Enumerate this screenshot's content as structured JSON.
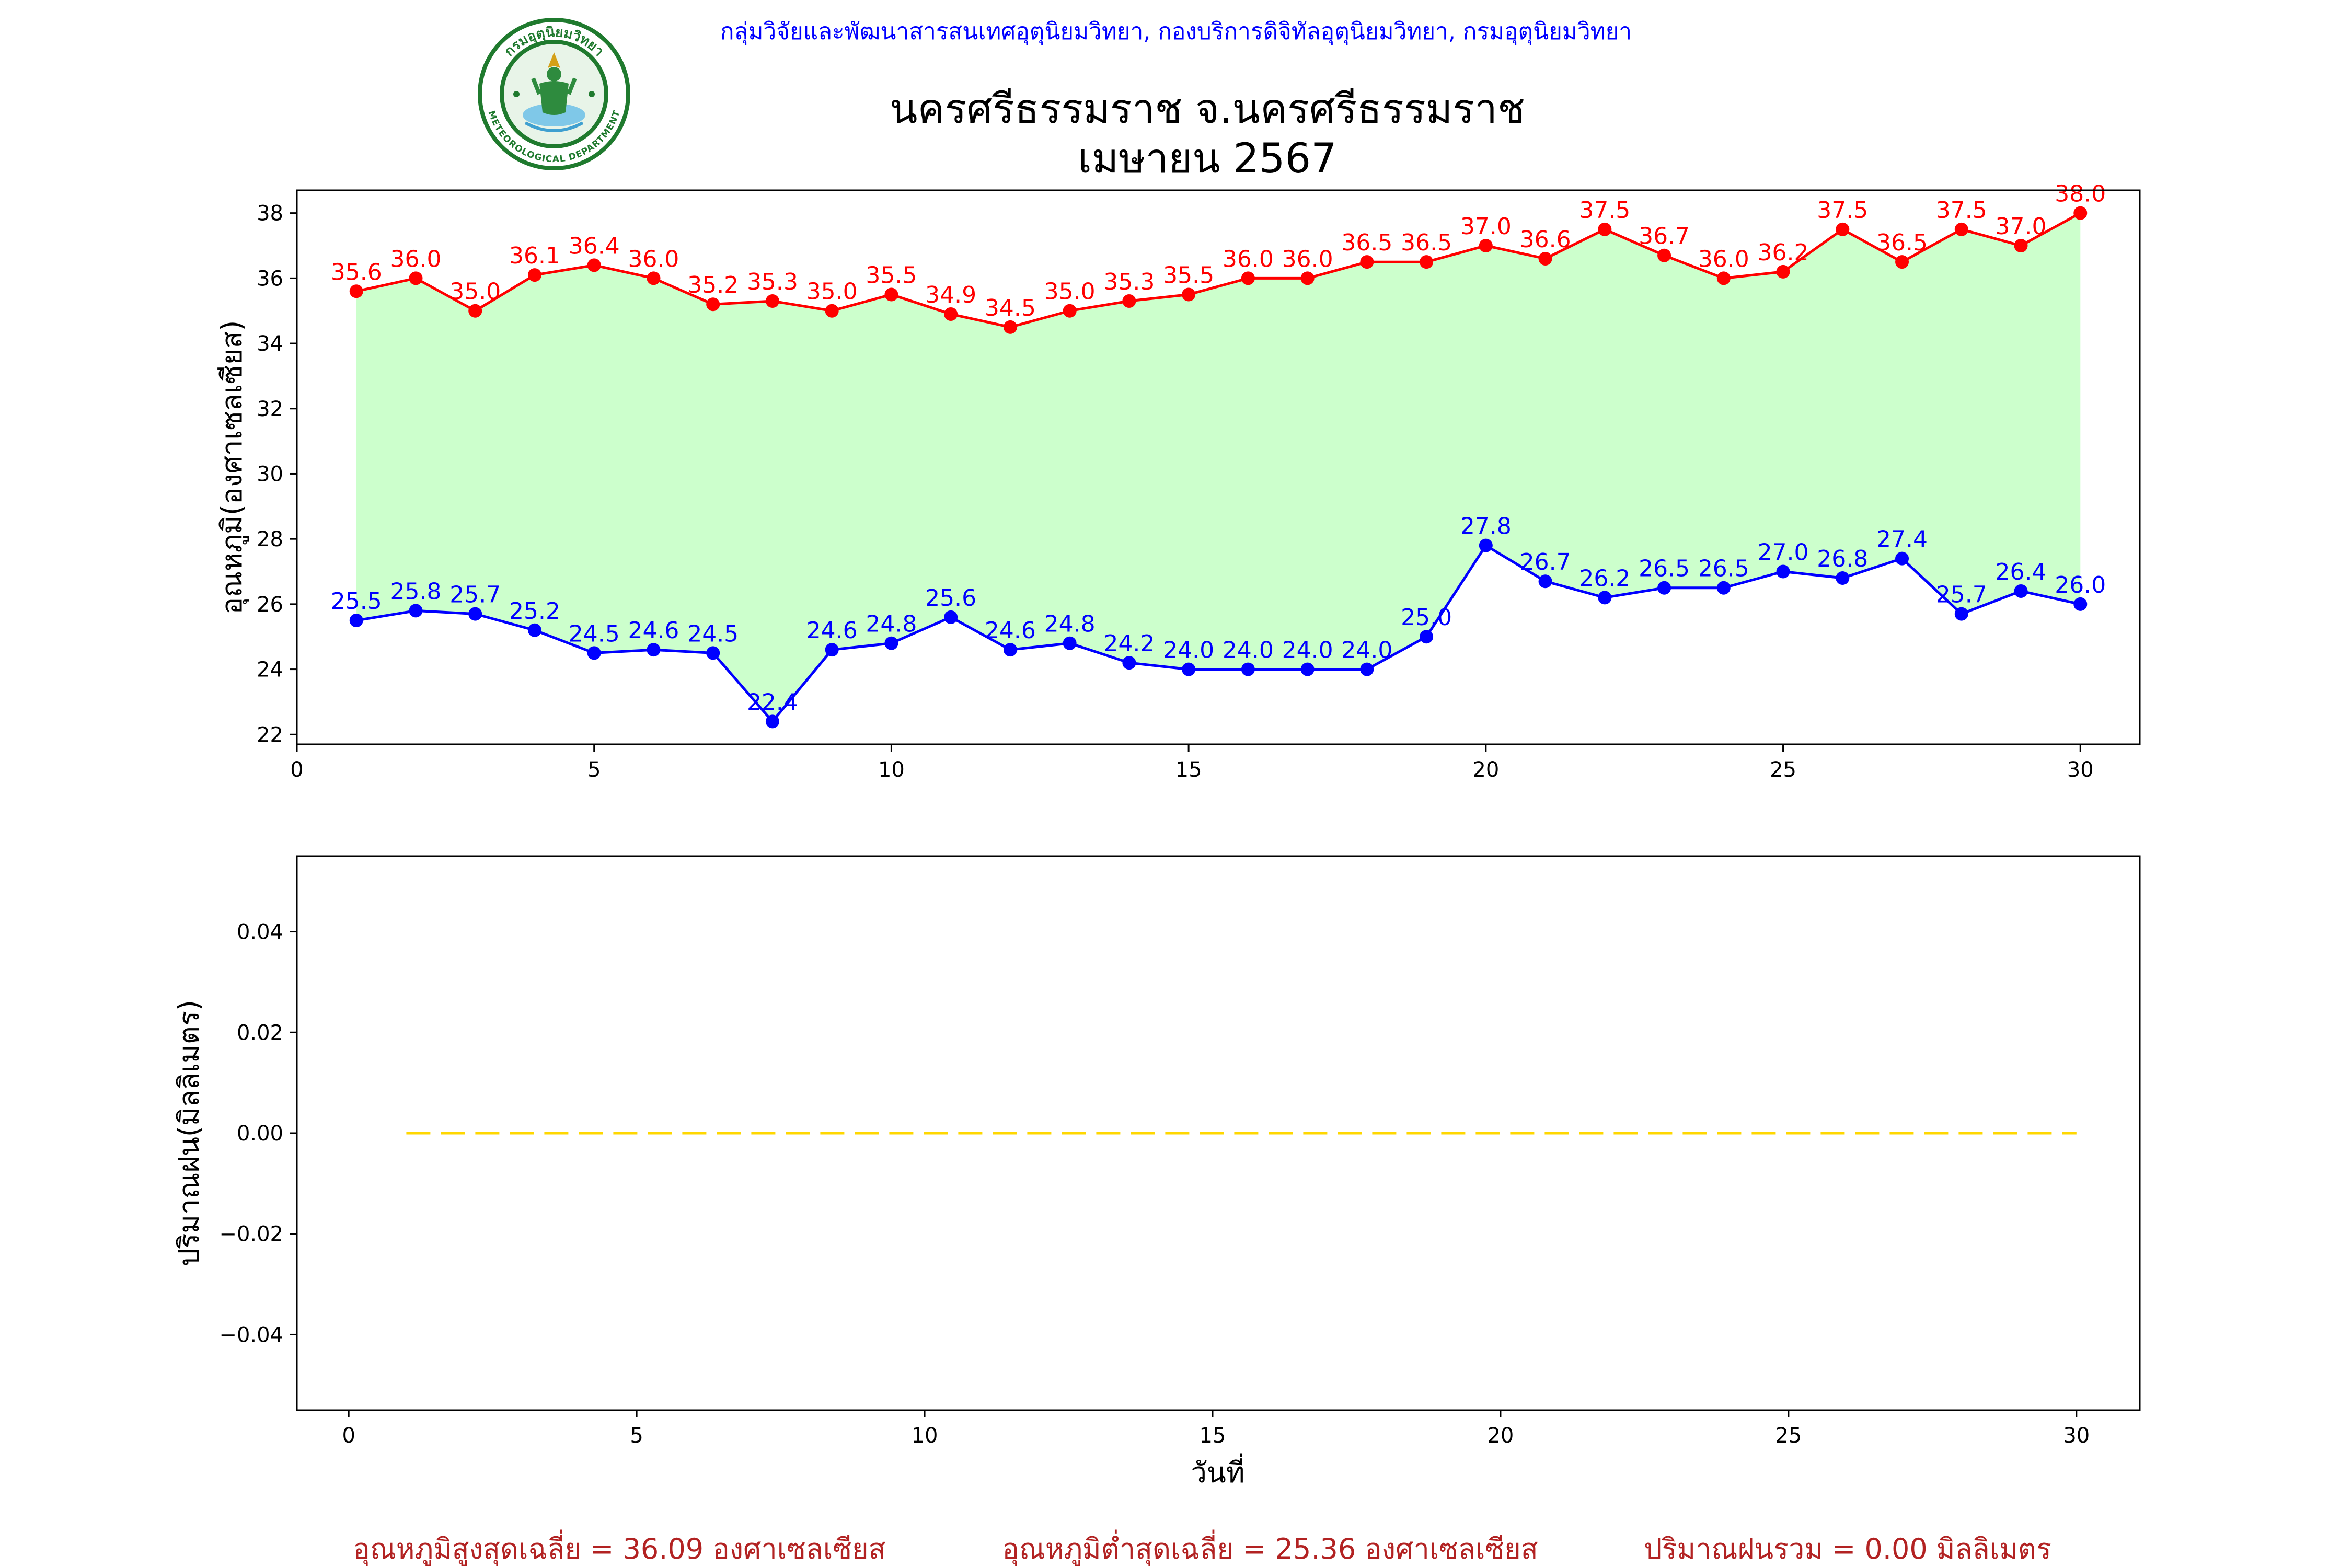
{
  "header": {
    "agency": "กลุ่มวิจัยและพัฒนาสารสนเทศอุตุนิยมวิทยา, กองบริการดิจิทัลอุตุนิยมวิทยา, กรมอุตุนิยมวิทยา",
    "station": "นครศรีธรรมราช จ.นครศรีธรรมราช",
    "period": "เมษายน 2567",
    "logo_top_text": "กรมอุตุนิยมวิทยา",
    "logo_bottom_text": "METEOROLOGICAL DEPARTMENT"
  },
  "colors": {
    "max": "#ff0000",
    "min": "#0000ff",
    "fill": "#ccffcc",
    "rain": "#ffd700",
    "footer": "#b22222",
    "agency": "#0000ff",
    "logo": "#1f7a2e"
  },
  "chart_data": [
    {
      "type": "line",
      "ylabel": "อุณหภูมิ(องศาเซลเซียส)",
      "xlim": [
        0,
        31
      ],
      "ylim": [
        21.7,
        38.7
      ],
      "xticks": [
        0,
        5,
        10,
        15,
        20,
        25,
        30
      ],
      "yticks": [
        22,
        24,
        26,
        28,
        30,
        32,
        34,
        36,
        38
      ],
      "x": [
        1,
        2,
        3,
        4,
        5,
        6,
        7,
        8,
        9,
        10,
        11,
        12,
        13,
        14,
        15,
        16,
        17,
        18,
        19,
        20,
        21,
        22,
        23,
        24,
        25,
        26,
        27,
        28,
        29,
        30
      ],
      "series": [
        {
          "key": "max",
          "values": [
            35.6,
            36.0,
            35.0,
            36.1,
            36.4,
            36.0,
            35.2,
            35.3,
            35.0,
            35.5,
            34.9,
            34.5,
            35.0,
            35.3,
            35.5,
            36.0,
            36.0,
            36.5,
            36.5,
            37.0,
            36.6,
            37.5,
            36.7,
            36.0,
            36.2,
            37.5,
            36.5,
            37.5,
            37.0,
            38.0
          ]
        },
        {
          "key": "min",
          "values": [
            25.5,
            25.8,
            25.7,
            25.2,
            24.5,
            24.6,
            24.5,
            22.4,
            24.6,
            24.8,
            25.6,
            24.6,
            24.8,
            24.2,
            24.0,
            24.0,
            24.0,
            24.0,
            25.0,
            27.8,
            26.7,
            26.2,
            26.5,
            26.5,
            27.0,
            26.8,
            27.4,
            25.7,
            26.4,
            26.0
          ]
        }
      ],
      "fill_between": true,
      "grid": false
    },
    {
      "type": "line",
      "xlabel": "วันที่",
      "ylabel": "ปริมาณฝน(มิลลิเมตร)",
      "xlim": [
        -0.9,
        31.1
      ],
      "ylim": [
        -0.055,
        0.055
      ],
      "xticks": [
        0,
        5,
        10,
        15,
        20,
        25,
        30
      ],
      "yticks": [
        -0.04,
        -0.02,
        0.0,
        0.02,
        0.04
      ],
      "ytick_labels": [
        "−0.04",
        "−0.02",
        "0.00",
        "0.02",
        "0.04"
      ],
      "x": [
        1,
        2,
        3,
        4,
        5,
        6,
        7,
        8,
        9,
        10,
        11,
        12,
        13,
        14,
        15,
        16,
        17,
        18,
        19,
        20,
        21,
        22,
        23,
        24,
        25,
        26,
        27,
        28,
        29,
        30
      ],
      "series": [
        {
          "key": "rain",
          "style": "dashed",
          "values": [
            0,
            0,
            0,
            0,
            0,
            0,
            0,
            0,
            0,
            0,
            0,
            0,
            0,
            0,
            0,
            0,
            0,
            0,
            0,
            0,
            0,
            0,
            0,
            0,
            0,
            0,
            0,
            0,
            0,
            0
          ]
        }
      ],
      "grid": false
    }
  ],
  "footer": {
    "avg_max": "อุณหภูมิสูงสุดเฉลี่ย = 36.09 องศาเซลเซียส",
    "avg_min": "อุณหภูมิต่ำสุดเฉลี่ย = 25.36 องศาเซลเซียส",
    "rain_total": "ปริมาณฝนรวม = 0.00 มิลลิเมตร"
  }
}
